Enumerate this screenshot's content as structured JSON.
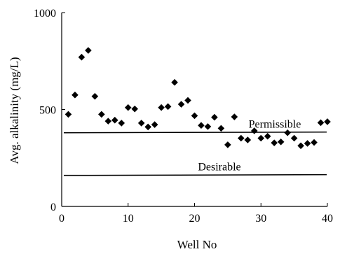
{
  "chart_data": {
    "type": "scatter",
    "xlabel": "Well No",
    "ylabel": "Avg. alkalinity (mg/L)",
    "xlim": [
      0,
      40
    ],
    "ylim": [
      0,
      1000
    ],
    "x_ticks": [
      "0",
      "10",
      "20",
      "30",
      "40"
    ],
    "y_ticks": [
      "0",
      "500",
      "1000"
    ],
    "grid": false,
    "marker": "diamond",
    "series": [
      {
        "points": [
          [
            1,
            475
          ],
          [
            2,
            575
          ],
          [
            3,
            770
          ],
          [
            4,
            805
          ],
          [
            5,
            568
          ],
          [
            6,
            475
          ],
          [
            7,
            440
          ],
          [
            8,
            445
          ],
          [
            9,
            430
          ],
          [
            10,
            510
          ],
          [
            11,
            503
          ],
          [
            12,
            430
          ],
          [
            13,
            410
          ],
          [
            14,
            422
          ],
          [
            15,
            510
          ],
          [
            16,
            515
          ],
          [
            17,
            640
          ],
          [
            18,
            527
          ],
          [
            19,
            547
          ],
          [
            20,
            468
          ],
          [
            21,
            418
          ],
          [
            22,
            412
          ],
          [
            23,
            460
          ],
          [
            24,
            403
          ],
          [
            25,
            318
          ],
          [
            26,
            462
          ],
          [
            27,
            352
          ],
          [
            28,
            343
          ],
          [
            29,
            390
          ],
          [
            30,
            352
          ],
          [
            31,
            362
          ],
          [
            32,
            328
          ],
          [
            33,
            333
          ],
          [
            34,
            380
          ],
          [
            35,
            352
          ],
          [
            36,
            313
          ],
          [
            37,
            325
          ],
          [
            38,
            330
          ],
          [
            39,
            432
          ],
          [
            40,
            437
          ]
        ]
      }
    ],
    "reference_lines": [
      {
        "label": "Permissible",
        "y": 380
      },
      {
        "label": "Desirable",
        "y": 160
      }
    ]
  }
}
